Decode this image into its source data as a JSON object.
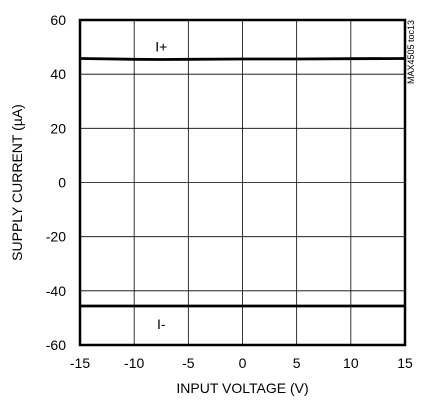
{
  "chart_data": {
    "type": "line",
    "title": "",
    "xlabel": "INPUT VOLTAGE (V)",
    "ylabel": "SUPPLY CURRENT (µA)",
    "watermark": "MAX4505 toc13",
    "xlim": [
      -15,
      15
    ],
    "ylim": [
      -60,
      60
    ],
    "xticks": [
      -15,
      -10,
      -5,
      0,
      5,
      10,
      15
    ],
    "yticks": [
      -60,
      -40,
      -20,
      0,
      20,
      40,
      60
    ],
    "grid": true,
    "series": [
      {
        "name": "I+",
        "x": [
          -15,
          -10,
          -7.5,
          -5,
          0,
          5,
          10,
          15
        ],
        "y": [
          45.8,
          45.5,
          45.4,
          45.5,
          45.6,
          45.6,
          45.7,
          45.8
        ]
      },
      {
        "name": "I-",
        "x": [
          -15,
          -10,
          -5,
          0,
          5,
          10,
          15
        ],
        "y": [
          -45.6,
          -45.6,
          -45.6,
          -45.6,
          -45.6,
          -45.6,
          -45.6
        ]
      }
    ]
  }
}
